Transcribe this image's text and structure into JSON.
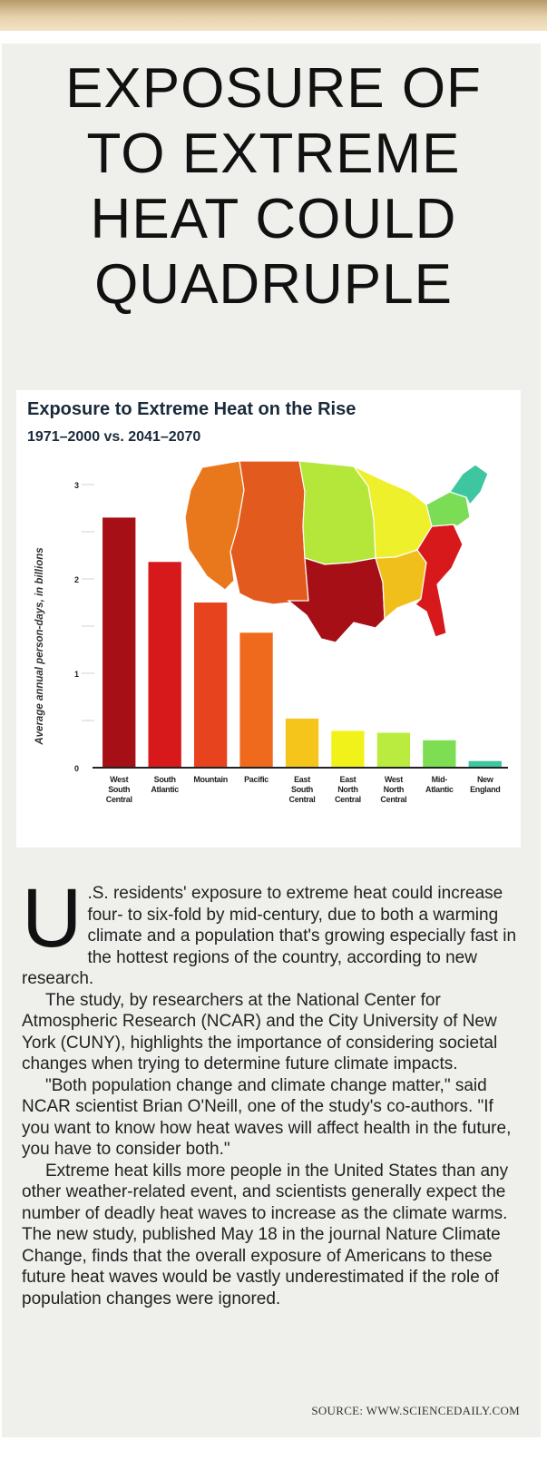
{
  "headline": [
    "EXPOSURE OF",
    "TO EXTREME",
    "HEAT COULD",
    "QUADRUPLE"
  ],
  "chart_data": {
    "type": "bar",
    "title": "Exposure to Extreme Heat on the Rise",
    "subtitle": "1971–2000 vs. 2041–2070",
    "ylabel": "Average annual person-days, in billions",
    "xlabel": "",
    "ylim": [
      0,
      3
    ],
    "yticks": [
      "0",
      "1",
      "2",
      "3"
    ],
    "grid": true,
    "categories": [
      [
        "West",
        "South",
        "Central"
      ],
      [
        "South",
        "Atlantic"
      ],
      [
        "Mountain"
      ],
      [
        "Pacific"
      ],
      [
        "East",
        "South",
        "Central"
      ],
      [
        "East",
        "North",
        "Central"
      ],
      [
        "West",
        "North",
        "Central"
      ],
      [
        "Mid-",
        "Atlantic"
      ],
      [
        "New",
        "England"
      ]
    ],
    "values": [
      2.65,
      2.18,
      1.75,
      1.43,
      0.52,
      0.39,
      0.37,
      0.29,
      0.07
    ],
    "colors": [
      "#a50f15",
      "#d7191c",
      "#e8431f",
      "#f06a1e",
      "#f6c51b",
      "#f2f21b",
      "#b9ec3e",
      "#7ddd53",
      "#3dc6a0"
    ],
    "map": "us-regions-choropleth"
  },
  "article": {
    "dropcap": "U",
    "paragraphs": [
      ".S. residents' exposure to extreme heat could increase four- to six-fold by mid-century, due to both a warming climate and a population that's growing especially fast in the hottest regions of the country, according to new research.",
      "The study, by researchers at the National Center for Atmospheric Research (NCAR) and the City University of New York (CUNY), highlights the importance of considering societal changes when trying to determine future climate impacts.",
      "\"Both population change and climate change matter,\" said NCAR scientist Brian O'Neill, one of the study's co-authors. \"If you want to know how heat waves will affect health in the future, you have to consider both.\"",
      "Extreme heat kills more people in the United States than any other weather-related event, and scientists generally expect the number of deadly heat waves to increase as the climate warms. The new study, published May 18 in the journal Nature Climate Change, finds that the overall exposure of Americans to these future heat waves would be vastly underestimated if the role of population changes were ignored."
    ]
  },
  "source": "SOURCE: WWW.SCIENCEDAILY.COM"
}
